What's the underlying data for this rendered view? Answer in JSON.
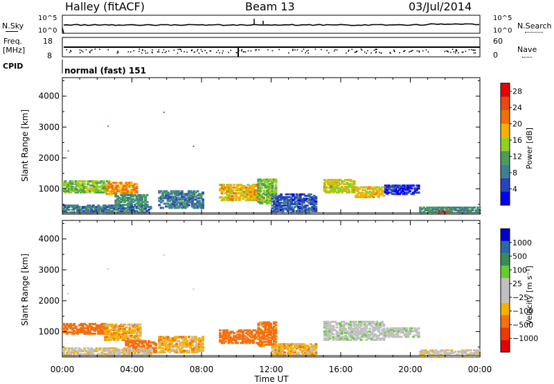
{
  "header": {
    "station": "Halley (fitACF)",
    "beam": "Beam 13",
    "date": "03/Jul/2014"
  },
  "strips": {
    "nsky_label": "N.Sky",
    "nsearch_label": "N.Search",
    "log_top": "10^5",
    "log_bottom": "10^0",
    "freq_label": "Freq.",
    "freq_unit": "[MHz]",
    "freq_ticks": [
      "18",
      "8"
    ],
    "nave_label": "Nave",
    "nave_ticks": [
      "60",
      "0"
    ],
    "cpid_label": "CPID",
    "cpid_value": "normal (fast) 151"
  },
  "panels": {
    "power": {
      "ylabel": "Slant Range [km]",
      "bar_label": "Power [dB]"
    },
    "velocity": {
      "ylabel": "Slant Range [km]",
      "bar_label": "Velocity [m s⁻¹]"
    }
  },
  "xaxis": {
    "label": "Time UT",
    "ticks": [
      "00:00",
      "04:00",
      "08:00",
      "12:00",
      "16:00",
      "20:00",
      "00:00"
    ]
  },
  "colors": {
    "power_scale": [
      "#0000ff",
      "#2a45b8",
      "#3f7f8f",
      "#4a9e5a",
      "#90d020",
      "#f5b000",
      "#f07000",
      "#e84818",
      "#e80000"
    ],
    "velocity_scale": [
      "#e80000",
      "#f03a00",
      "#f27010",
      "#f5b000",
      "#c0c0c0",
      "#c0c0c0",
      "#66cc33",
      "#3a8a5a",
      "#2a6aa0",
      "#0000cc"
    ]
  },
  "chart_data": [
    {
      "type": "heatmap",
      "title": "Power",
      "xlabel": "Time UT",
      "ylabel": "Slant Range [km]",
      "xlim_hours": [
        0,
        24
      ],
      "ylim": [
        180,
        4600
      ],
      "y_ticks": [
        1000,
        2000,
        3000,
        4000
      ],
      "colorbar": {
        "label": "Power [dB]",
        "ticks": [
          4,
          8,
          12,
          16,
          20,
          24,
          28
        ],
        "range": [
          0,
          30
        ]
      },
      "regions": [
        {
          "t0": 0.0,
          "t1": 2.7,
          "r0": 850,
          "r1": 1250,
          "value": 14
        },
        {
          "t0": 2.5,
          "t1": 4.3,
          "r0": 800,
          "r1": 1200,
          "value": 20
        },
        {
          "t0": 3.0,
          "t1": 4.8,
          "r0": 450,
          "r1": 800,
          "value": 10
        },
        {
          "t0": 0.0,
          "t1": 5.0,
          "r0": 200,
          "r1": 450,
          "value": 8
        },
        {
          "t0": 5.5,
          "t1": 8.0,
          "r0": 350,
          "r1": 900,
          "value": 8
        },
        {
          "t0": 9.0,
          "t1": 11.2,
          "r0": 600,
          "r1": 1100,
          "value": 18
        },
        {
          "t0": 11.2,
          "t1": 12.2,
          "r0": 500,
          "r1": 1300,
          "value": 14
        },
        {
          "t0": 12.0,
          "t1": 14.5,
          "r0": 200,
          "r1": 800,
          "value": 6
        },
        {
          "t0": 15.0,
          "t1": 16.8,
          "r0": 850,
          "r1": 1300,
          "value": 16
        },
        {
          "t0": 16.8,
          "t1": 18.5,
          "r0": 700,
          "r1": 1050,
          "value": 18
        },
        {
          "t0": 18.5,
          "t1": 20.5,
          "r0": 800,
          "r1": 1100,
          "value": 4
        },
        {
          "t0": 20.5,
          "t1": 24.0,
          "r0": 180,
          "r1": 380,
          "value": 10
        },
        {
          "t0": 21.6,
          "t1": 22.3,
          "r0": 180,
          "r1": 260,
          "value": 26
        }
      ]
    },
    {
      "type": "heatmap",
      "title": "Velocity",
      "xlabel": "Time UT",
      "ylabel": "Slant Range [km]",
      "xlim_hours": [
        0,
        24
      ],
      "ylim": [
        180,
        4600
      ],
      "y_ticks": [
        1000,
        2000,
        3000,
        4000
      ],
      "colorbar": {
        "label": "Velocity [m s-1]",
        "ticks": [
          1000,
          500,
          100,
          25,
          -25,
          -100,
          -500,
          -1000
        ]
      },
      "regions": [
        {
          "t0": 0.0,
          "t1": 2.6,
          "r0": 900,
          "r1": 1250,
          "value": -250
        },
        {
          "t0": 2.4,
          "t1": 4.4,
          "r0": 700,
          "r1": 1200,
          "value": -70
        },
        {
          "t0": 3.6,
          "t1": 5.3,
          "r0": 300,
          "r1": 700,
          "value": -250
        },
        {
          "t0": 0.0,
          "t1": 5.0,
          "r0": 200,
          "r1": 450,
          "value": 0
        },
        {
          "t0": 5.5,
          "t1": 8.0,
          "r0": 300,
          "r1": 800,
          "value": -60
        },
        {
          "t0": 9.0,
          "t1": 11.2,
          "r0": 600,
          "r1": 1050,
          "value": -250
        },
        {
          "t0": 11.2,
          "t1": 12.2,
          "r0": 500,
          "r1": 1300,
          "value": -150
        },
        {
          "t0": 12.0,
          "t1": 14.5,
          "r0": 200,
          "r1": 600,
          "value": -60
        },
        {
          "t0": 15.0,
          "t1": 18.5,
          "r0": 700,
          "r1": 1300,
          "value": 60
        },
        {
          "t0": 18.5,
          "t1": 20.5,
          "r0": 800,
          "r1": 1100,
          "value": 60
        },
        {
          "t0": 20.5,
          "t1": 24.0,
          "r0": 180,
          "r1": 380,
          "value": 0
        }
      ]
    }
  ]
}
